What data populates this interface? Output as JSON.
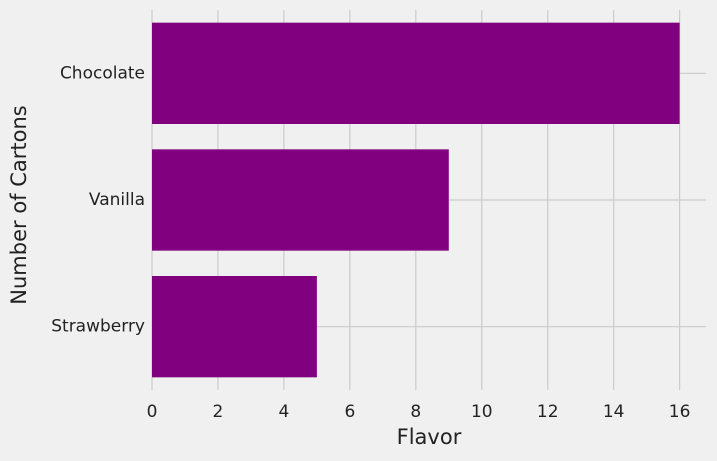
{
  "chart_data": {
    "type": "barh",
    "xlabel": "Flavor",
    "ylabel": "Number of Cartons",
    "categories": [
      "Strawberry",
      "Vanilla",
      "Chocolate"
    ],
    "values": [
      5,
      9,
      16
    ],
    "color": "#800080",
    "xlim": [
      0,
      16.8
    ],
    "xticks": [
      0,
      2,
      4,
      6,
      8,
      10,
      12,
      14,
      16
    ],
    "grid": true
  }
}
